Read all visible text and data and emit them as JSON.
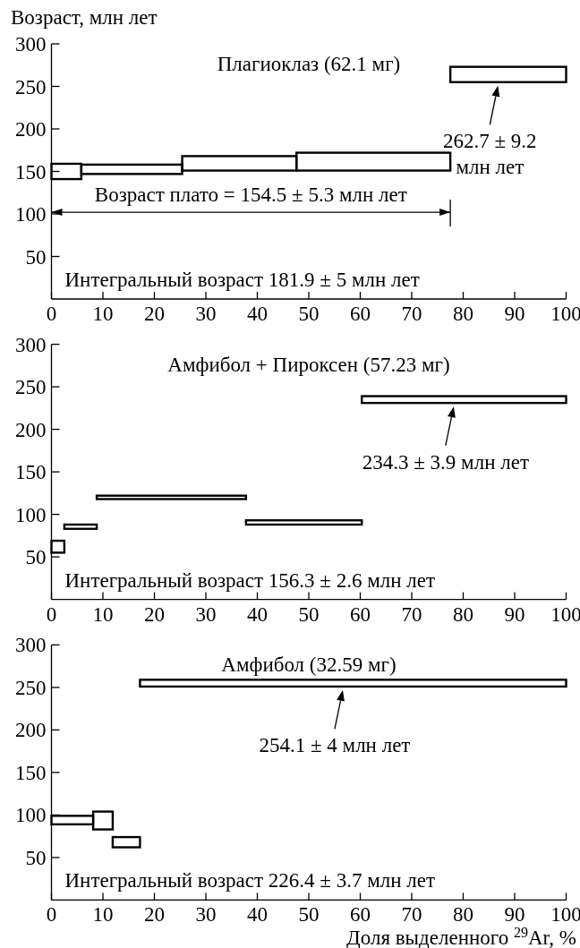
{
  "chart_data": [
    {
      "type": "histogram",
      "title": "Плагиоклаз (62.1 мг)",
      "ylabel": "Возраст, млн лет",
      "bins": [
        0,
        5.8,
        25.4,
        47.6,
        77.5,
        100
      ],
      "base": [
        141,
        147,
        151,
        151,
        255
      ],
      "values": [
        18,
        11,
        17,
        21,
        18
      ],
      "color": "#000000",
      "xlim": [
        0,
        100
      ],
      "xticks": [
        0,
        10,
        20,
        30,
        40,
        50,
        60,
        70,
        80,
        90,
        100
      ],
      "ylim": [
        0,
        300
      ],
      "yticks": [
        50,
        100,
        150,
        200,
        250,
        300
      ],
      "annotations": [
        "Интегральный возраст 181.9 ± 5 млн лет",
        "Возраст плато = 154.5 ± 5.3 млн лет",
        "262.7 ± 9.2 млн лет"
      ]
    },
    {
      "type": "histogram",
      "title": "Амфибол + Пироксен (57.23 мг)",
      "bins": [
        0,
        2.5,
        8.8,
        37.8,
        60.3,
        100
      ],
      "base": [
        55,
        83,
        118,
        88,
        231
      ],
      "values": [
        14,
        5,
        4,
        5,
        8
      ],
      "color": "#000000",
      "xlim": [
        0,
        100
      ],
      "xticks": [
        0,
        10,
        20,
        30,
        40,
        50,
        60,
        70,
        80,
        90,
        100
      ],
      "ylim": [
        0,
        300
      ],
      "yticks": [
        50,
        100,
        150,
        200,
        250,
        300
      ],
      "annotations": [
        "Интегральный возраст 156.3 ± 2.6 млн лет",
        "234.3 ± 3.9 млн лет"
      ]
    },
    {
      "type": "histogram",
      "title": "Амфибол (32.59 мг)",
      "xlabel": "Доля выделенного $^{29}$Ar, %",
      "bins": [
        0,
        8.1,
        11.9,
        17.2,
        100
      ],
      "base": [
        89,
        83,
        62,
        251
      ],
      "values": [
        10,
        21,
        12,
        8
      ],
      "color": "#000000",
      "xlim": [
        0,
        100
      ],
      "xticks": [
        0,
        10,
        20,
        30,
        40,
        50,
        60,
        70,
        80,
        90,
        100
      ],
      "ylim": [
        0,
        300
      ],
      "yticks": [
        50,
        100,
        150,
        200,
        250,
        300
      ],
      "annotations": [
        "Интегральный возраст 226.4 ± 3.7 млн лет",
        "254.1 ± 4 млн лет"
      ]
    }
  ]
}
